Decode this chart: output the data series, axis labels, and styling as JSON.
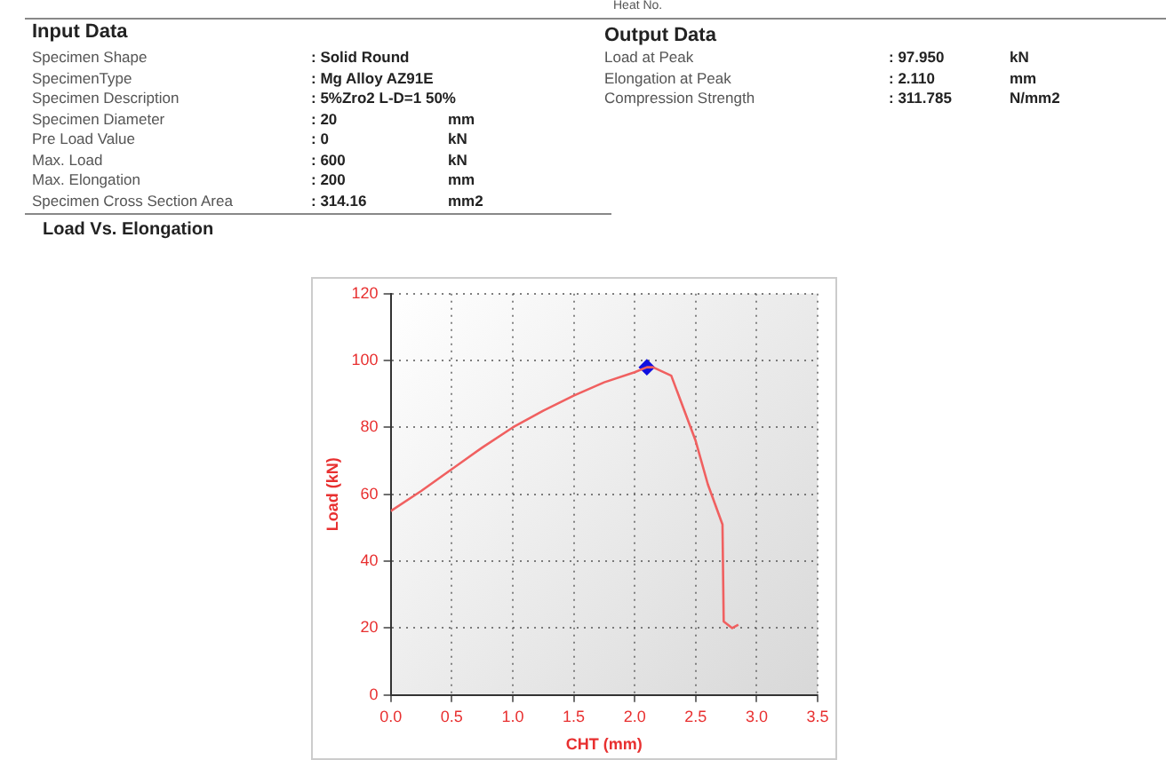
{
  "chart_data": {
    "type": "line",
    "title": "Load Vs. Elongation",
    "xlabel": "CHT (mm)",
    "ylabel": "Load (kN)",
    "annotations": [
      "Heat No.",
      "Input Data",
      "Specimen Shape",
      ": Solid Round",
      "SpecimenType",
      ":  Mg Alloy AZ91E",
      "Specimen Description",
      ": 5%Zro2 L-D=1 50%",
      "Specimen Diameter",
      ": 20",
      "mm",
      "Pre Load Value",
      ": 0",
      "kN",
      "Max. Load",
      ": 600",
      "kN",
      "Max. Elongation",
      ": 200",
      "mm",
      "Specimen Cross Section Area",
      ": 314.16",
      "mm2",
      "Output Data",
      "Load at Peak",
      ": 97.950",
      "kN",
      "Elongation at Peak",
      ": 2.110",
      "mm",
      "Compression  Strength",
      ": 311.785",
      "N/mm2"
    ],
    "series": [
      {
        "type": "line",
        "color": "#f06060",
        "marker": "none",
        "x": [
          0,
          0.25,
          0.5,
          0.75,
          1.0,
          1.25,
          1.5,
          1.75,
          2.0,
          2.1,
          2.15,
          2.3,
          2.5,
          2.6,
          2.72,
          2.73,
          2.8,
          2.85
        ],
        "values": [
          55,
          61,
          67.5,
          74,
          80,
          85,
          89.5,
          93.5,
          96.5,
          98,
          98,
          95.5,
          76,
          63,
          51,
          22,
          20,
          21
        ]
      },
      {
        "type": "scatter",
        "color": "#1010e0",
        "marker": "diamond",
        "x": [
          2.1
        ],
        "values": [
          98
        ]
      }
    ],
    "xlim": [
      0,
      3.5
    ],
    "xticks": [
      {
        "value": 0,
        "label": "0.0"
      },
      0.5,
      {
        "value": 1,
        "label": "1.0"
      },
      1.5,
      {
        "value": 2,
        "label": "2.0"
      },
      2.5,
      {
        "value": 3,
        "label": "3.0"
      },
      3.5
    ],
    "ylim": [
      0,
      120
    ],
    "yticks": [
      0,
      20,
      40,
      60,
      80,
      100,
      120
    ],
    "grid": true,
    "line_style": "solid",
    "legend": false
  }
}
